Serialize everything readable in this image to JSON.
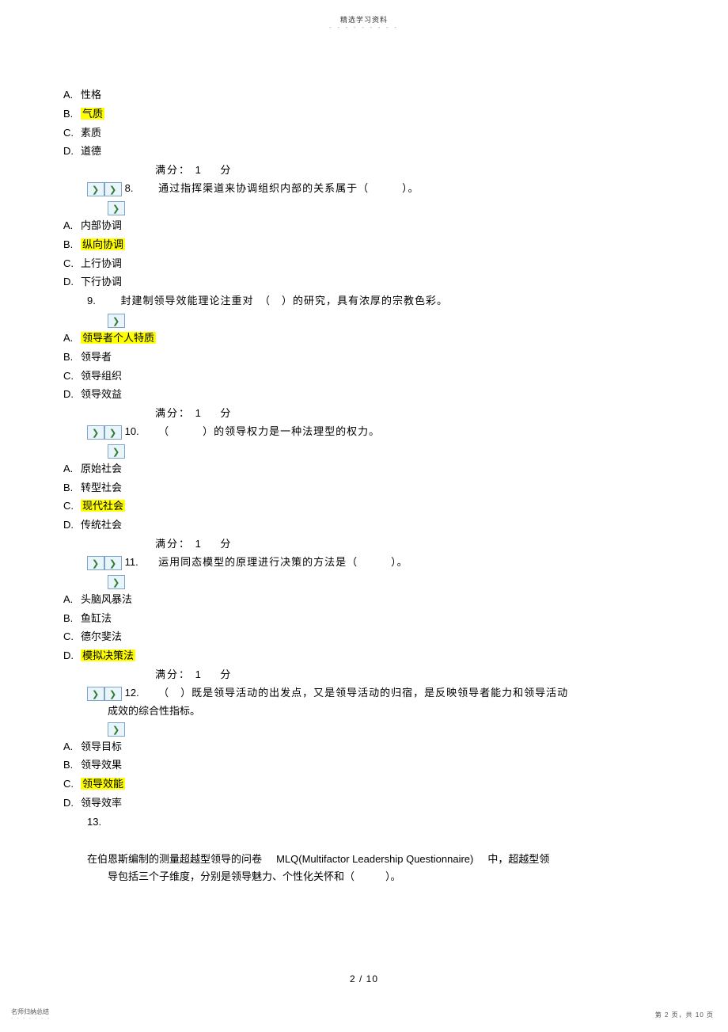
{
  "header": {
    "title": "精选学习资料",
    "dots": "- - - - - - - - -"
  },
  "score": {
    "label": "满分：",
    "value": "1",
    "unit": "分"
  },
  "q7": {
    "options": [
      {
        "letter": "A.",
        "text": "性格",
        "hl": false
      },
      {
        "letter": "B.",
        "text": "气质",
        "hl": true
      },
      {
        "letter": "C.",
        "text": "素质",
        "hl": false
      },
      {
        "letter": "D.",
        "text": "道德",
        "hl": false
      }
    ]
  },
  "q8": {
    "num": "8.",
    "text": "通过指挥渠道来协调组织内部的关系属于（　　　）。",
    "options": [
      {
        "letter": "A.",
        "text": "内部协调",
        "hl": false
      },
      {
        "letter": "B.",
        "text": "纵向协调",
        "hl": true
      },
      {
        "letter": "C.",
        "text": "上行协调",
        "hl": false
      },
      {
        "letter": "D.",
        "text": "下行协调",
        "hl": false
      }
    ]
  },
  "q9": {
    "num": "9.",
    "text": "封建制领导效能理论注重对　（　）的研究，具有浓厚的宗教色彩。",
    "options": [
      {
        "letter": "A.",
        "text": "领导者个人特质",
        "hl": true
      },
      {
        "letter": "B.",
        "text": "领导者",
        "hl": false
      },
      {
        "letter": "C.",
        "text": "领导组织",
        "hl": false
      },
      {
        "letter": "D.",
        "text": "领导效益",
        "hl": false
      }
    ]
  },
  "q10": {
    "num": "10.",
    "text": "（　　　）的领导权力是一种法理型的权力。",
    "options": [
      {
        "letter": "A.",
        "text": "原始社会",
        "hl": false
      },
      {
        "letter": "B.",
        "text": "转型社会",
        "hl": false
      },
      {
        "letter": "C.",
        "text": "现代社会",
        "hl": true
      },
      {
        "letter": "D.",
        "text": "传统社会",
        "hl": false
      }
    ]
  },
  "q11": {
    "num": "11.",
    "text": "运用同态模型的原理进行决策的方法是（　　　）。",
    "options": [
      {
        "letter": "A.",
        "text": "头脑风暴法",
        "hl": false
      },
      {
        "letter": "B.",
        "text": "鱼缸法",
        "hl": false
      },
      {
        "letter": "C.",
        "text": "德尔斐法",
        "hl": false
      },
      {
        "letter": "D.",
        "text": "模拟决策法",
        "hl": true
      }
    ]
  },
  "q12": {
    "num": "12.",
    "text_l1": "（　）既是领导活动的出发点，又是领导活动的归宿，是反映领导者能力和领导活动",
    "text_l2": "成效的综合性指标。",
    "options": [
      {
        "letter": "A.",
        "text": "领导目标",
        "hl": false
      },
      {
        "letter": "B.",
        "text": "领导效果",
        "hl": false
      },
      {
        "letter": "C.",
        "text": "领导效能",
        "hl": true
      },
      {
        "letter": "D.",
        "text": "领导效率",
        "hl": false
      }
    ]
  },
  "q13": {
    "num": "13.",
    "line1_a": "在伯恩斯编制的测量超越型领导的问卷",
    "line1_b": "MLQ(Multifactor Leadership Questionnaire)",
    "line1_c": "中，超越型领",
    "line2": "导包括三个子维度，分别是领导魅力、个性化关怀和（　　　）。"
  },
  "pageNum": {
    "text": "2 / 10"
  },
  "footer": {
    "left1": "名师归纳总结",
    "left2": "- - - - - - -",
    "right": "第 2 页，共 10 页"
  }
}
